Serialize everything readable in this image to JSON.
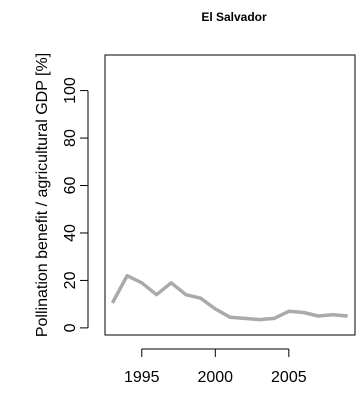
{
  "chart_data": {
    "type": "line",
    "title": "El Salvador",
    "xlabel": "",
    "ylabel": "Pollination benefit / agricultural GDP [%]",
    "xlim": [
      1992.5,
      2009.5
    ],
    "ylim": [
      -3,
      115
    ],
    "xticks": [
      1995,
      2000,
      2005
    ],
    "yticks": [
      0,
      20,
      40,
      60,
      80,
      100
    ],
    "grid": false,
    "series": [
      {
        "color": "#aaaaaa",
        "x": [
          1993,
          1994,
          1995,
          1996,
          1997,
          1998,
          1999,
          2000,
          2001,
          2002,
          2003,
          2004,
          2005,
          2006,
          2007,
          2008,
          2009
        ],
        "values": [
          10.5,
          22,
          19,
          14,
          19,
          14,
          12.5,
          8,
          4.5,
          4,
          3.5,
          4,
          7,
          6.5,
          5,
          5.5,
          5
        ]
      }
    ]
  }
}
